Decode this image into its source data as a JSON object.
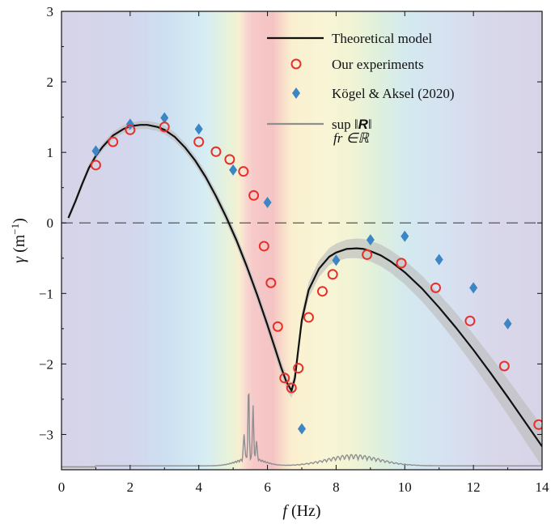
{
  "chart_data": {
    "type": "line",
    "xlabel": {
      "symbol": "f",
      "unit": " (Hz)"
    },
    "ylabel": {
      "symbol": "γ",
      "unit_open": " (m",
      "unit_exp": "−1",
      "unit_close": ")"
    },
    "xlim": [
      0,
      14
    ],
    "ylim": [
      -3.5,
      3
    ],
    "x_ticks": [
      0,
      2,
      4,
      6,
      8,
      10,
      12,
      14
    ],
    "y_ticks": [
      -3,
      -2,
      -1,
      0,
      1,
      2,
      3
    ],
    "x_tick_labels": [
      "0",
      "2",
      "4",
      "6",
      "8",
      "10",
      "12",
      "14"
    ],
    "y_tick_labels": [
      "−3",
      "−2",
      "−1",
      "0",
      "1",
      "2",
      "3"
    ],
    "background": "rainbow-gradient",
    "reference_line": {
      "y": 0,
      "style": "dashed"
    },
    "legend": {
      "placement": "top-right",
      "entries": [
        {
          "label": "Theoretical model",
          "marker": "line"
        },
        {
          "label": "Our experiments",
          "marker": "open-circle"
        },
        {
          "label": "Kögel & Aksel (2020)",
          "marker": "diamond"
        },
        {
          "label": "sup ‖",
          "label_bold": "R",
          "label_end": "‖",
          "sublabel": "fr ∈ℝ",
          "marker": "line"
        }
      ]
    },
    "series": [
      {
        "name": "Theoretical model",
        "kind": "line",
        "color": "#111111",
        "x": [
          0.2,
          0.4,
          0.6,
          0.8,
          1.0,
          1.2,
          1.5,
          1.8,
          2.0,
          2.3,
          2.5,
          2.8,
          3.0,
          3.3,
          3.6,
          3.9,
          4.2,
          4.5,
          4.8,
          5.1,
          5.4,
          5.7,
          6.0,
          6.2,
          6.4,
          6.55,
          6.7,
          6.8,
          6.9,
          7.0,
          7.2,
          7.5,
          7.8,
          8.0,
          8.3,
          8.6,
          8.8,
          9.0,
          9.3,
          9.6,
          10.0,
          10.5,
          11.0,
          11.5,
          12.0,
          12.5,
          13.0,
          13.5,
          14.0
        ],
        "y": [
          0.07,
          0.3,
          0.55,
          0.78,
          0.95,
          1.08,
          1.24,
          1.33,
          1.37,
          1.39,
          1.39,
          1.36,
          1.32,
          1.22,
          1.07,
          0.88,
          0.65,
          0.38,
          0.08,
          -0.25,
          -0.62,
          -1.02,
          -1.45,
          -1.75,
          -2.05,
          -2.25,
          -2.38,
          -2.2,
          -1.78,
          -1.38,
          -0.95,
          -0.65,
          -0.48,
          -0.42,
          -0.37,
          -0.36,
          -0.37,
          -0.4,
          -0.46,
          -0.55,
          -0.7,
          -0.93,
          -1.2,
          -1.49,
          -1.8,
          -2.13,
          -2.47,
          -2.82,
          -3.17
        ]
      },
      {
        "name": "Our experiments",
        "kind": "scatter",
        "marker": "open-circle",
        "color": "#e8302a",
        "x": [
          1.0,
          1.5,
          2.0,
          3.0,
          4.0,
          4.5,
          4.9,
          5.3,
          5.6,
          5.9,
          6.1,
          6.3,
          6.5,
          6.7,
          6.9,
          7.2,
          7.6,
          7.9,
          8.9,
          9.9,
          10.9,
          11.9,
          12.9,
          13.9
        ],
        "y": [
          0.82,
          1.15,
          1.32,
          1.36,
          1.15,
          1.01,
          0.9,
          0.73,
          0.39,
          -0.33,
          -0.85,
          -1.47,
          -2.2,
          -2.34,
          -2.06,
          -1.34,
          -0.97,
          -0.73,
          -0.45,
          -0.57,
          -0.92,
          -1.39,
          -2.03,
          -2.86
        ]
      },
      {
        "name": "Kögel & Aksel (2020)",
        "kind": "scatter",
        "marker": "diamond",
        "color": "#3d86c6",
        "x": [
          1.0,
          2.0,
          3.0,
          4.0,
          5.0,
          6.0,
          7.0,
          8.0,
          9.0,
          10.0,
          11.0,
          12.0,
          13.0
        ],
        "y": [
          1.02,
          1.4,
          1.49,
          1.33,
          0.75,
          0.29,
          -2.92,
          -0.53,
          -0.24,
          -0.19,
          -0.52,
          -0.92,
          -1.43
        ]
      },
      {
        "name": "sup ‖R‖",
        "kind": "line",
        "color": "#8f8f8f",
        "note": "oscillating envelope near bottom axis",
        "peaks": [
          {
            "x": 5.45,
            "y": -2.42
          },
          {
            "x": 5.58,
            "y": -2.7
          },
          {
            "x": 5.3,
            "y": -3.12
          },
          {
            "x": 8.5,
            "y": -3.3
          }
        ]
      }
    ]
  }
}
